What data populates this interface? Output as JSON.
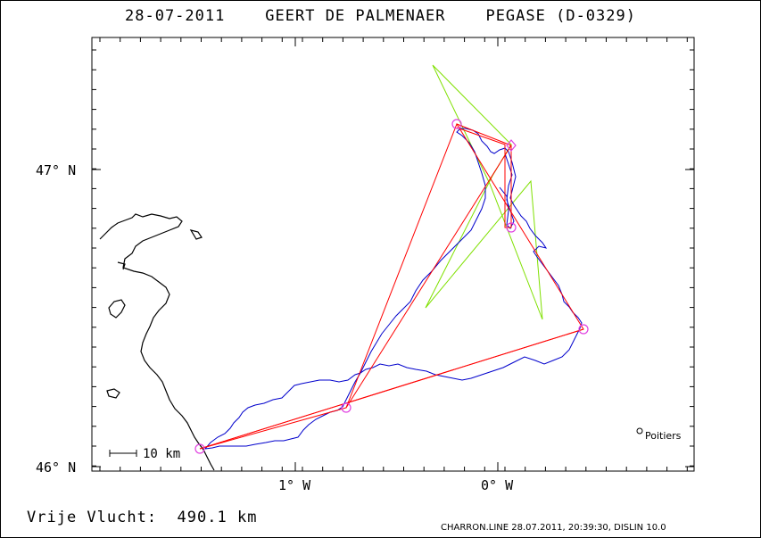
{
  "title": "28-07-2011    GEERT DE PALMENAER    PEGASE (D-0329)",
  "axes": {
    "y_ticks": [
      {
        "label": "47° N",
        "value": 47
      },
      {
        "label": "46° N",
        "value": 46
      }
    ],
    "x_ticks": [
      {
        "label": "1° W",
        "value": -1
      },
      {
        "label": "0° W",
        "value": 0
      }
    ]
  },
  "scale_bar": {
    "label": "10 km"
  },
  "city": {
    "name": "Poitiers"
  },
  "footer": {
    "distance_label": "Vrije Vlucht:",
    "distance_value": "490.1 km"
  },
  "credits": "CHARRON.LINE 28.07.2011, 20:39:30, DISLIN 10.0",
  "colors": {
    "track": "#0000cc",
    "task_line": "#ff0000",
    "alt_line": "#7fe000",
    "turnpoint": "#e040e0",
    "coast": "#000000"
  }
}
